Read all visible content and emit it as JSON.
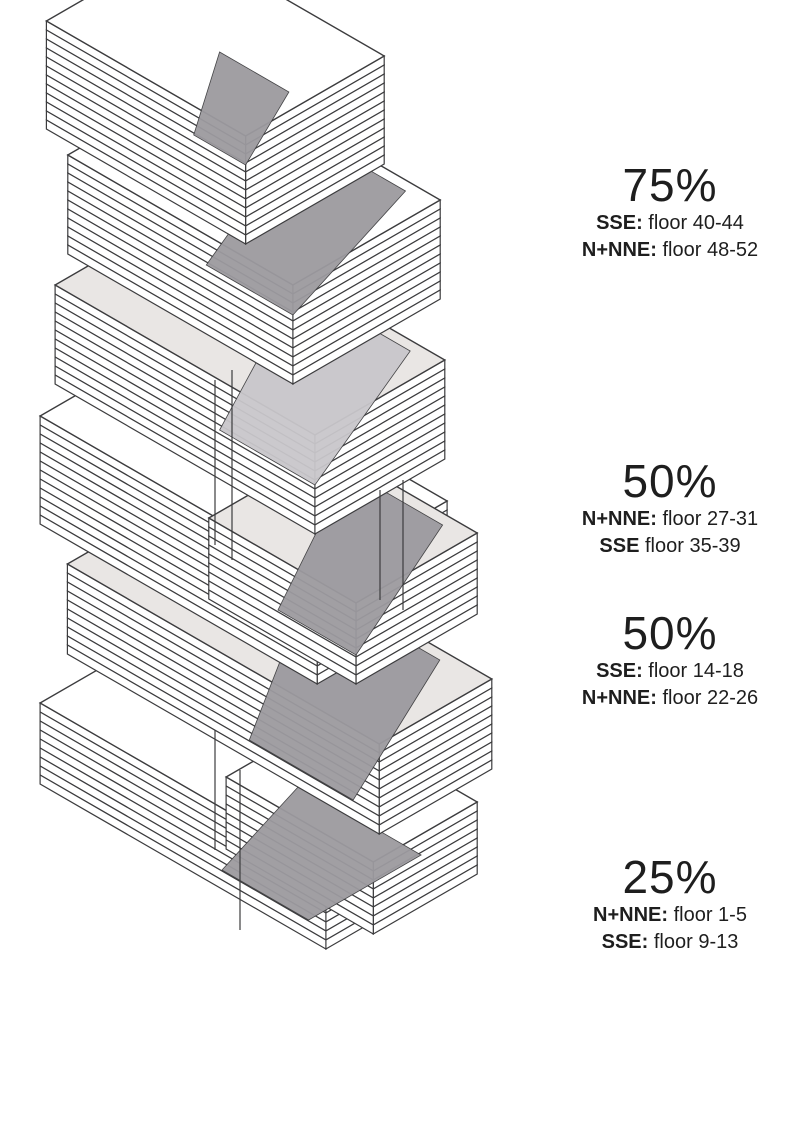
{
  "colors": {
    "line": "#3c3c3e",
    "slab": "#ffffff",
    "terrace": "#e9e6e4",
    "shadow": "#9c9a9f",
    "shadow_light": "#c9c7cb"
  },
  "callouts": [
    {
      "percent": "75%",
      "rows": [
        {
          "key": "SSE:",
          "value": " floor 40-44"
        },
        {
          "key": "N+NNE:",
          "value": " floor 48-52"
        }
      ]
    },
    {
      "percent": "50%",
      "rows": [
        {
          "key": "N+NNE:",
          "value": " floor 27-31"
        },
        {
          "key": "SSE",
          "value": " floor 35-39"
        }
      ]
    },
    {
      "percent": "50%",
      "rows": [
        {
          "key": "SSE:",
          "value": " floor 14-18"
        },
        {
          "key": "N+NNE:",
          "value": " floor 22-26"
        }
      ]
    },
    {
      "percent": "25%",
      "rows": [
        {
          "key": "N+NNE:",
          "value": " floor 1-5"
        },
        {
          "key": "SSE:",
          "value": " floor 9-13"
        }
      ]
    }
  ]
}
